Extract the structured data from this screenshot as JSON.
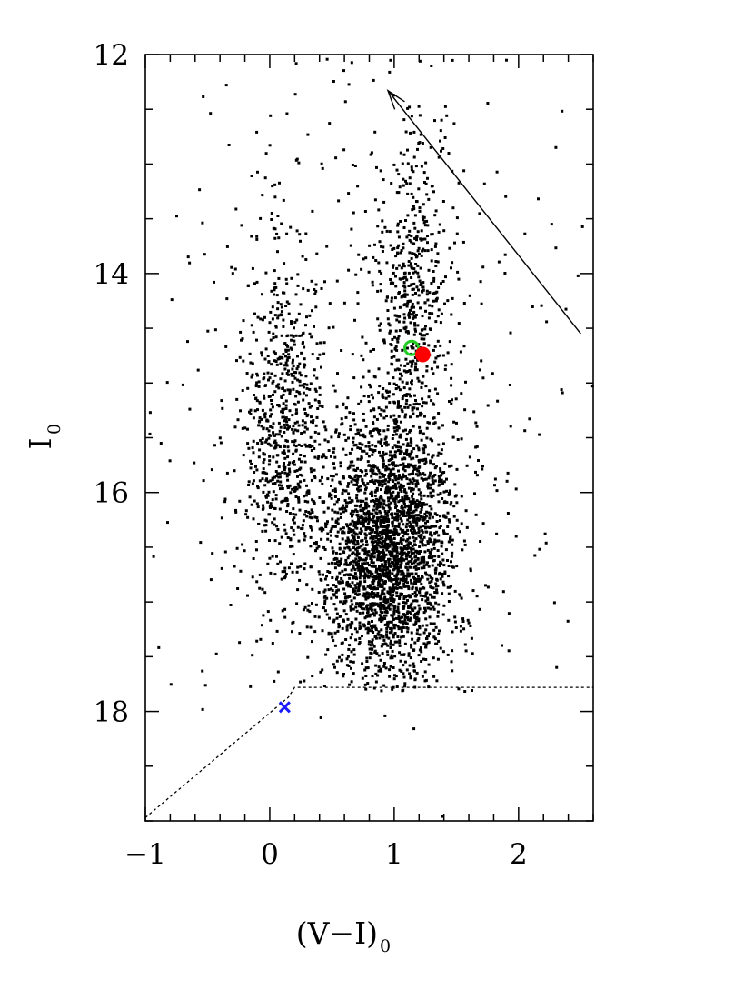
{
  "chart_data": {
    "type": "scatter",
    "title": "",
    "xlabel": {
      "main": "(V−I)",
      "sub": "0"
    },
    "ylabel": {
      "main": "I",
      "sub": "0"
    },
    "xlim": [
      -1,
      2.6
    ],
    "ylim": [
      19,
      12
    ],
    "y_inverted": true,
    "x_major_ticks": [
      -1,
      0,
      1,
      2
    ],
    "x_tick_labels": [
      "−1",
      "0",
      "1",
      "2"
    ],
    "x_minor_step": 0.2,
    "y_major_ticks": [
      12,
      14,
      16,
      18
    ],
    "y_tick_labels": [
      "12",
      "14",
      "16",
      "18"
    ],
    "y_minor_step": 0.5,
    "grid": false,
    "colors": {
      "points": "#000000",
      "open_circle": "#22cc22",
      "filled_circle": "#ff0000",
      "cross": "#1a1aff"
    },
    "series": [
      {
        "kind": "field-stars",
        "marker": "dot",
        "groups": [
          {
            "count": 2200,
            "x_mean": 0.93,
            "x_sd": 0.27,
            "y_mean": 16.65,
            "y_sd": 0.55
          },
          {
            "count": 550,
            "x_mean": 1.05,
            "x_sd": 0.22,
            "y_mean": 15.8,
            "y_sd": 0.55
          },
          {
            "count": 700,
            "x_mean": 0.12,
            "x_sd": 0.17,
            "y_mean": 15.4,
            "y_sd": 0.8
          },
          {
            "count": 320,
            "x_mean": 1.15,
            "x_sd": 0.14,
            "y_mean": 14.4,
            "y_sd": 0.45
          },
          {
            "count": 130,
            "x_mean": 1.2,
            "x_sd": 0.15,
            "y_mean": 13.4,
            "y_sd": 0.5
          },
          {
            "count": 500,
            "x_mean": 0.8,
            "x_sd": 0.9,
            "y_mean": 15.0,
            "y_sd": 1.8
          }
        ]
      },
      {
        "kind": "open-circle",
        "x": [
          1.14
        ],
        "y": [
          14.68
        ]
      },
      {
        "kind": "filled-circle",
        "x": [
          1.23
        ],
        "y": [
          14.74
        ]
      },
      {
        "kind": "cross",
        "x": [
          0.12
        ],
        "y": [
          17.96
        ]
      }
    ],
    "reddening_vector": {
      "from": {
        "x": 2.5,
        "y": 14.55
      },
      "to": {
        "x": 0.95,
        "y": 12.33
      }
    },
    "completeness_limit": [
      {
        "x": -1.0,
        "y": 18.97
      },
      {
        "x": 0.15,
        "y": 17.87
      },
      {
        "x": 0.2,
        "y": 17.78
      },
      {
        "x": 2.6,
        "y": 17.78
      }
    ]
  }
}
